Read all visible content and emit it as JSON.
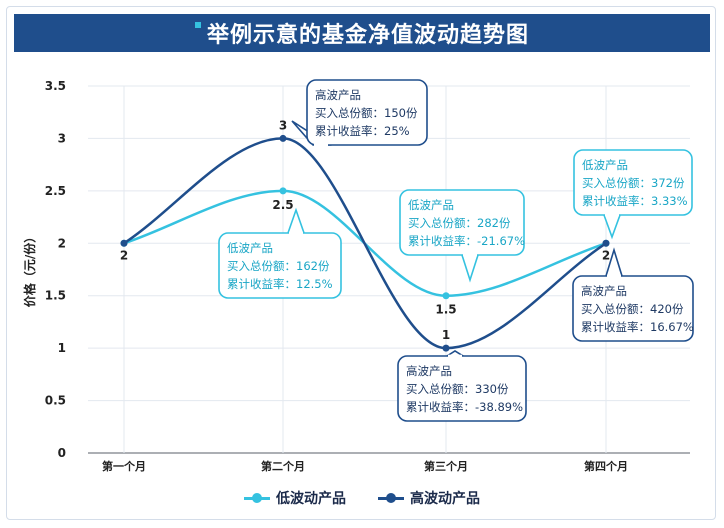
{
  "title": "举例示意的基金净值波动趋势图",
  "colors": {
    "low": "#35c2e0",
    "high": "#1f4e8c",
    "grid": "#e3e8ef"
  },
  "chart_data": {
    "type": "line",
    "categories": [
      "第一个月",
      "第二个月",
      "第三个月",
      "第四个月"
    ],
    "ylabel": "价格（元/份）",
    "ylim": [
      0,
      3.5
    ],
    "yticks": [
      "0",
      "0.5",
      "1",
      "1.5",
      "2",
      "2.5",
      "3",
      "3.5"
    ],
    "grid": true,
    "smooth": true,
    "legend_position": "bottom",
    "series": [
      {
        "name": "低波动产品",
        "values": [
          2,
          2.5,
          1.5,
          2
        ],
        "labels": [
          "2",
          "2.5",
          "1.5",
          "2"
        ]
      },
      {
        "name": "高波动产品",
        "values": [
          2,
          3,
          1,
          2
        ],
        "labels": [
          "2",
          "3",
          "1",
          "2"
        ]
      }
    ],
    "annotations": [
      {
        "series": "高波动产品",
        "point": 1,
        "name": "高波产品",
        "lines": [
          "买入总份额：150份",
          "累计收益率：25%"
        ]
      },
      {
        "series": "低波动产品",
        "point": 1,
        "name": "低波产品",
        "lines": [
          "买入总份额：162份",
          "累计收益率：12.5%"
        ]
      },
      {
        "series": "低波动产品",
        "point": 2,
        "name": "低波产品",
        "lines": [
          "买入总份额：282份",
          "累计收益率：-21.67%"
        ]
      },
      {
        "series": "高波动产品",
        "point": 2,
        "name": "高波产品",
        "lines": [
          "买入总份额：330份",
          "累计收益率：-38.89%"
        ]
      },
      {
        "series": "低波动产品",
        "point": 3,
        "name": "低波产品",
        "lines": [
          "买入总份额：372份",
          "累计收益率：3.33%"
        ]
      },
      {
        "series": "高波动产品",
        "point": 3,
        "name": "高波产品",
        "lines": [
          "买入总份额：420份",
          "累计收益率：16.67%"
        ]
      }
    ]
  }
}
